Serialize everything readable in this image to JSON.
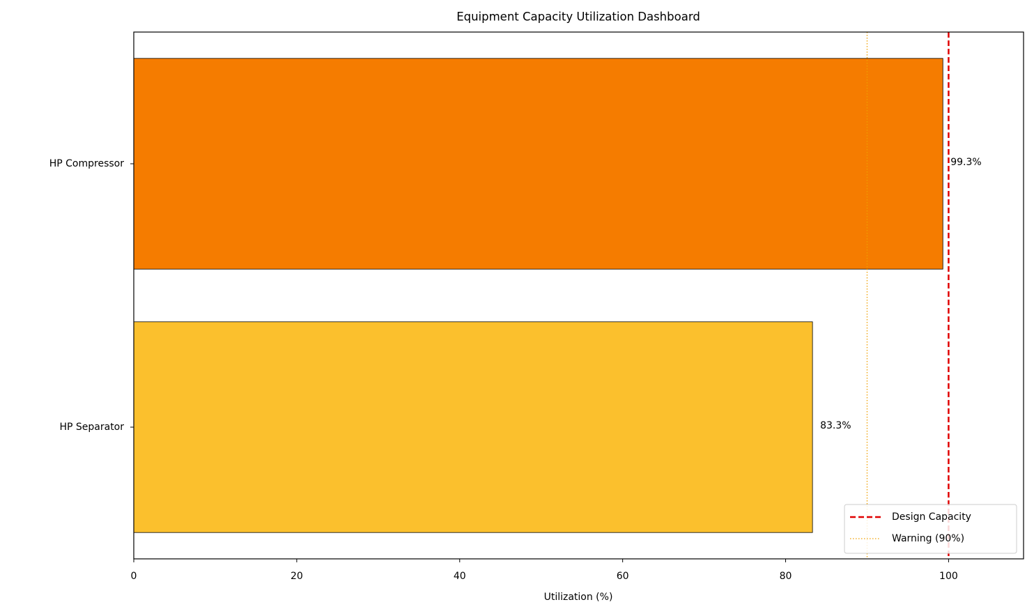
{
  "chart_data": {
    "type": "barh",
    "title": "Equipment Capacity Utilization Dashboard",
    "x_label": "Utilization (%)",
    "categories": [
      "HP Compressor",
      "HP Separator"
    ],
    "values": [
      99.3,
      83.3
    ],
    "value_labels": [
      "99.3%",
      "83.3%"
    ],
    "colors": [
      "#f57c00",
      "#fbc02d"
    ],
    "xlim": [
      0,
      109.2
    ],
    "xticks": [
      0,
      20,
      40,
      60,
      80,
      100
    ],
    "reference_lines": [
      {
        "name": "Design Capacity",
        "value": 100,
        "color": "#e00000",
        "style": "dashed"
      },
      {
        "name": "Warning (90%)",
        "value": 90,
        "color": "#f0a000",
        "style": "dotted"
      }
    ],
    "legend": "lower right"
  }
}
